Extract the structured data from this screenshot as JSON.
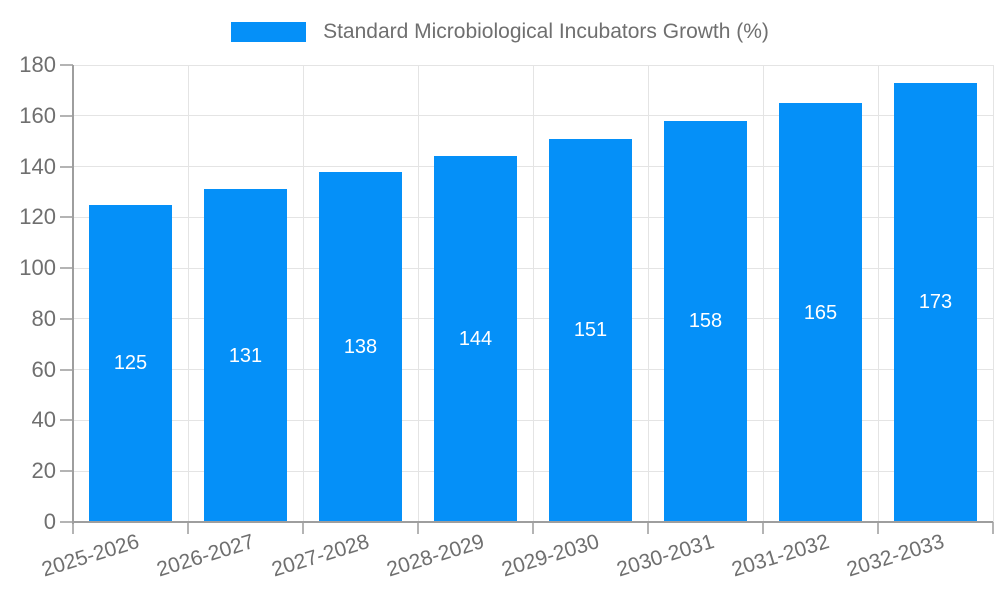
{
  "chart_data": {
    "type": "bar",
    "title": "Standard Microbiological Incubators Growth (%)",
    "legend": {
      "label": "Standard Microbiological Incubators Growth (%)",
      "position": "top-center"
    },
    "categories": [
      "2025-2026",
      "2026-2027",
      "2027-2028",
      "2028-2029",
      "2029-2030",
      "2030-2031",
      "2031-2032",
      "2032-2033"
    ],
    "series": [
      {
        "name": "Standard Microbiological Incubators Growth (%)",
        "values": [
          125,
          131,
          138,
          144,
          151,
          158,
          165,
          173
        ]
      }
    ],
    "value_labels_shown": true,
    "xlabel": "",
    "ylabel": "",
    "ylim": [
      0,
      180
    ],
    "ytick_step": 20,
    "yticks": [
      0,
      20,
      40,
      60,
      80,
      100,
      120,
      140,
      160,
      180
    ],
    "grid": true,
    "x_label_rotation_deg": -17,
    "colors": {
      "bar": "#0590f8",
      "bar_value_label": "#ffffff",
      "axis_text": "#6f6f6f",
      "legend_text": "#6f6f6f",
      "gridline": "#e4e4e4",
      "spine": "#9e9e9e",
      "tick_mark": "#b4b4b4",
      "background": "#ffffff"
    }
  }
}
